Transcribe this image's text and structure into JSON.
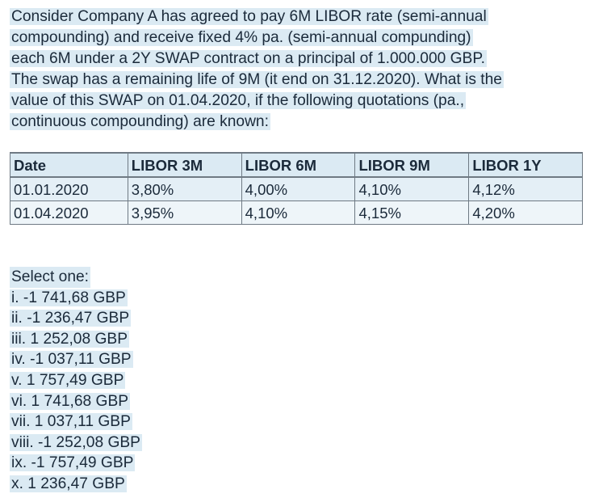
{
  "question": {
    "lines": [
      "Consider Company A has agreed to pay 6M LIBOR rate (semi-annual",
      "compounding) and receive fixed 4% pa. (semi-annual compunding)",
      "each 6M under a 2Y SWAP contract on a principal of 1.000.000 GBP.",
      "The swap has a remaining life of 9M (it end on 31.12.2020). What is the",
      "value of this SWAP on 01.04.2020, if the following quotations (pa.,",
      "continuous compounding) are known:"
    ]
  },
  "table": {
    "headers": [
      "Date",
      "LIBOR 3M",
      "LIBOR 6M",
      "LIBOR 9M",
      "LIBOR 1Y"
    ],
    "rows": [
      [
        "01.01.2020",
        "3,80%",
        "4,00%",
        "4,10%",
        "4,12%"
      ],
      [
        "01.04.2020",
        "3,95%",
        "4,10%",
        "4,15%",
        "4,20%"
      ]
    ]
  },
  "answers": {
    "prompt": "Select one:",
    "options": [
      "i. -1 741,68 GBP",
      "ii. -1 236,47 GBP",
      "iii.  1 252,08 GBP",
      "iv. -1 037,11 GBP",
      "v.  1 757,49 GBP",
      "vi.  1 741,68 GBP",
      "vii.  1 037,11 GBP",
      "viii. -1 252,08 GBP",
      "ix. -1 757,49 GBP",
      "x.  1 236,47 GBP"
    ]
  }
}
